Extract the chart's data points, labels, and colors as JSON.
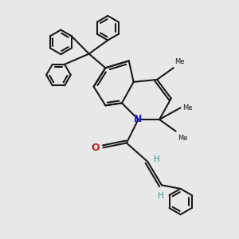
{
  "bg_color": "#e8e8e8",
  "bond_color": "#1a1a1a",
  "N_color": "#2020cc",
  "O_color": "#cc2020",
  "H_color": "#3a9090",
  "lw": 1.5,
  "figsize": [
    3.0,
    3.0
  ],
  "dpi": 100,
  "xlim": [
    0,
    10
  ],
  "ylim": [
    0,
    10
  ]
}
